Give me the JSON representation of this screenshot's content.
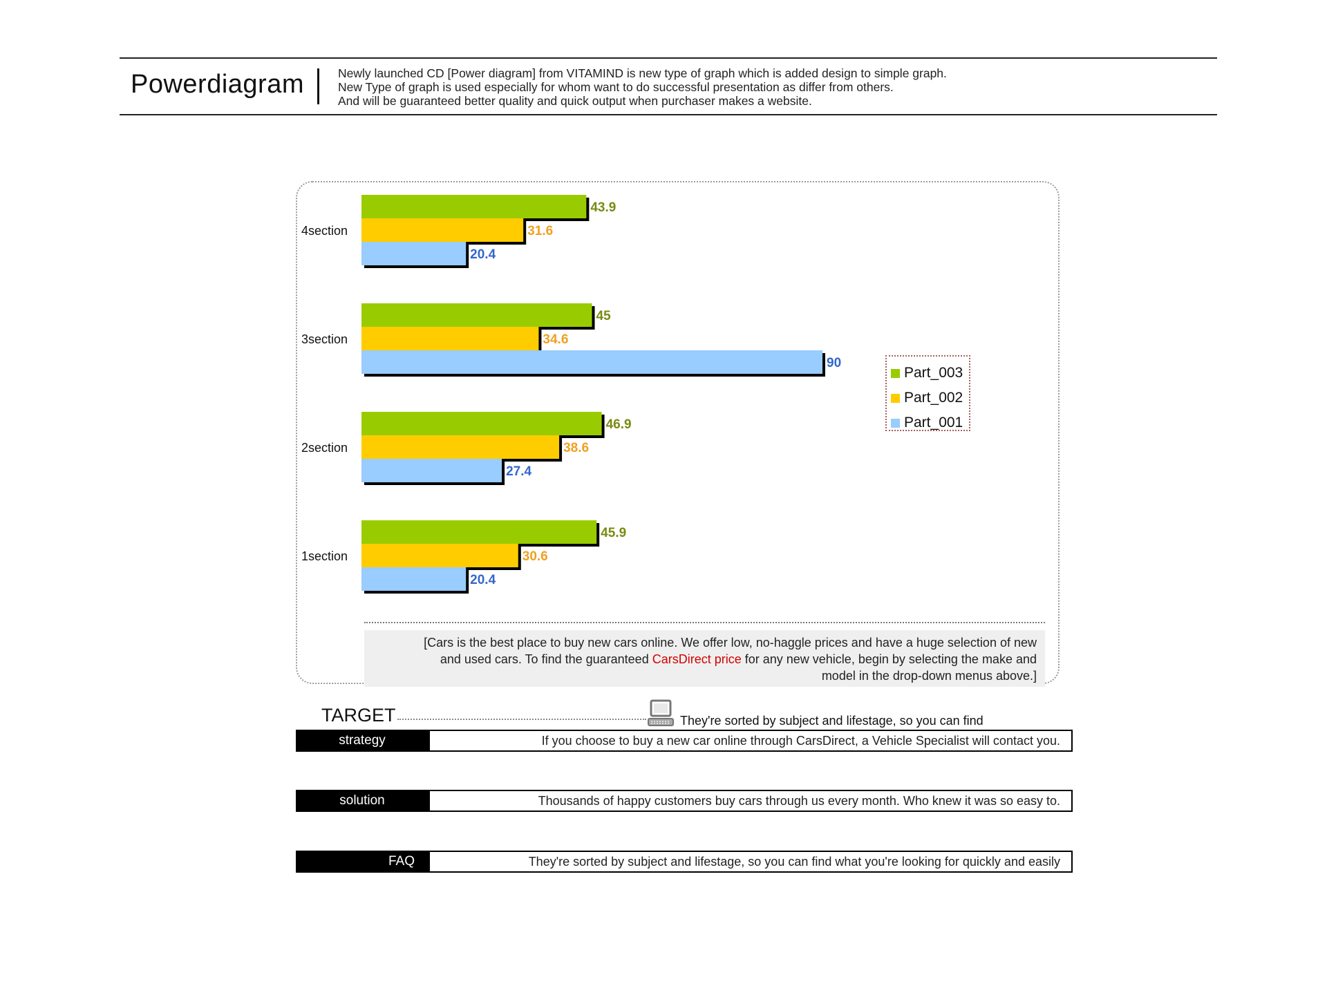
{
  "header": {
    "title": "Powerdiagram",
    "desc_lines": [
      "Newly launched CD [Power diagram] from VITAMIND is new type of graph which is added design to simple graph.",
      "New Type of graph is used especially for whom want to do successful presentation as differ from others.",
      "And will be guaranteed better quality and quick output when purchaser makes a website."
    ]
  },
  "chart_data": {
    "type": "bar",
    "orientation": "horizontal",
    "categories": [
      "4section",
      "3section",
      "2section",
      "1section"
    ],
    "series": [
      {
        "name": "Part_003",
        "color": "#99cc00",
        "label_color": "#7a8a10",
        "values": [
          43.9,
          45,
          46.9,
          45.9
        ]
      },
      {
        "name": "Part_002",
        "color": "#ffcc00",
        "label_color": "#f0a020",
        "values": [
          31.6,
          34.6,
          38.6,
          30.6
        ]
      },
      {
        "name": "Part_001",
        "color": "#99ccff",
        "label_color": "#3366cc",
        "values": [
          20.4,
          90,
          27.4,
          20.4
        ]
      }
    ],
    "xlim": [
      0,
      90
    ],
    "grid": false,
    "legend_position": "right",
    "legend_order": [
      "Part_003",
      "Part_002",
      "Part_001"
    ]
  },
  "note": {
    "line1": "[Cars is the best place to buy new cars online. We offer low, no-haggle prices and have a huge selection of new",
    "line2_before": "and used cars. To find the guaranteed ",
    "line2_highlight": "CarsDirect price",
    "line2_after": " for any new vehicle, begin by selecting the make and",
    "line3": "model in the drop-down menus above.]"
  },
  "target": {
    "label": "TARGET",
    "text": "They're sorted by subject and lifestage, so you can find"
  },
  "rows": [
    {
      "label": "strategy",
      "text": "If you choose to buy a new car online through CarsDirect, a Vehicle Specialist will contact you."
    },
    {
      "label": "solution",
      "text": "Thousands of happy customers buy cars through us every month. Who knew it was so easy to."
    },
    {
      "label": "FAQ",
      "text": "They're sorted by subject and lifestage, so you can find what you're looking for quickly and easily"
    }
  ]
}
